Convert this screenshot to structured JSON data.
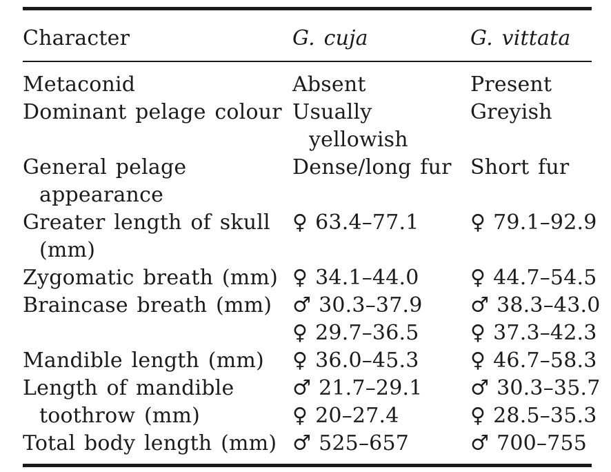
{
  "page": {
    "background_color": "#ffffff",
    "text_color": "#1b1b1b",
    "rule_color": "#1a1a1a"
  },
  "table": {
    "header": {
      "character": "Character",
      "g_cuja": "G. cuja",
      "g_vittata": "G. vittata"
    },
    "symbols": {
      "female": "♀",
      "male": "♂"
    },
    "rows": [
      {
        "character": [
          {
            "text": "Metaconid"
          }
        ],
        "g_cuja": [
          {
            "text": "Absent"
          }
        ],
        "g_vittata": [
          {
            "text": "Present"
          }
        ]
      },
      {
        "character": [
          {
            "text": "Dominant pelage colour"
          }
        ],
        "g_cuja": [
          {
            "text": "Usually"
          },
          {
            "text": "yellowish",
            "indent": true
          }
        ],
        "g_vittata": [
          {
            "text": "Greyish"
          }
        ]
      },
      {
        "character": [
          {
            "text": "General pelage"
          },
          {
            "text": "appearance",
            "indent": true
          }
        ],
        "g_cuja": [
          {
            "text": "Dense/long fur"
          }
        ],
        "g_vittata": [
          {
            "text": "Short fur"
          }
        ]
      },
      {
        "character": [
          {
            "text": "Greater length of skull"
          },
          {
            "text": "(mm)",
            "indent": true
          }
        ],
        "g_cuja": [
          {
            "sex": "female",
            "text": "63.4–77.1"
          }
        ],
        "g_vittata": [
          {
            "sex": "female",
            "text": "79.1–92.9"
          }
        ]
      },
      {
        "character": [
          {
            "text": "Zygomatic breath (mm)"
          }
        ],
        "g_cuja": [
          {
            "sex": "female",
            "text": "34.1–44.0"
          }
        ],
        "g_vittata": [
          {
            "sex": "female",
            "text": "44.7–54.5"
          }
        ]
      },
      {
        "character": [
          {
            "text": "Braincase breath (mm)"
          }
        ],
        "g_cuja": [
          {
            "sex": "male",
            "text": "30.3–37.9"
          },
          {
            "sex": "female",
            "text": "29.7–36.5"
          }
        ],
        "g_vittata": [
          {
            "sex": "male",
            "text": "38.3–43.0"
          },
          {
            "sex": "female",
            "text": "37.3–42.3"
          }
        ]
      },
      {
        "character": [
          {
            "text": "Mandible length (mm)"
          }
        ],
        "g_cuja": [
          {
            "sex": "female",
            "text": "36.0–45.3"
          }
        ],
        "g_vittata": [
          {
            "sex": "female",
            "text": "46.7–58.3"
          }
        ]
      },
      {
        "character": [
          {
            "text": "Length of mandible"
          },
          {
            "text": "toothrow (mm)",
            "indent": true
          }
        ],
        "g_cuja": [
          {
            "sex": "male",
            "text": "21.7–29.1"
          },
          {
            "sex": "female",
            "text": "20–27.4"
          }
        ],
        "g_vittata": [
          {
            "sex": "male",
            "text": "30.3–35.7"
          },
          {
            "sex": "female",
            "text": "28.5–35.3"
          }
        ]
      },
      {
        "character": [
          {
            "text": "Total body length (mm)"
          }
        ],
        "g_cuja": [
          {
            "sex": "male",
            "text": "525–657"
          }
        ],
        "g_vittata": [
          {
            "sex": "male",
            "text": "700–755"
          }
        ]
      }
    ]
  }
}
